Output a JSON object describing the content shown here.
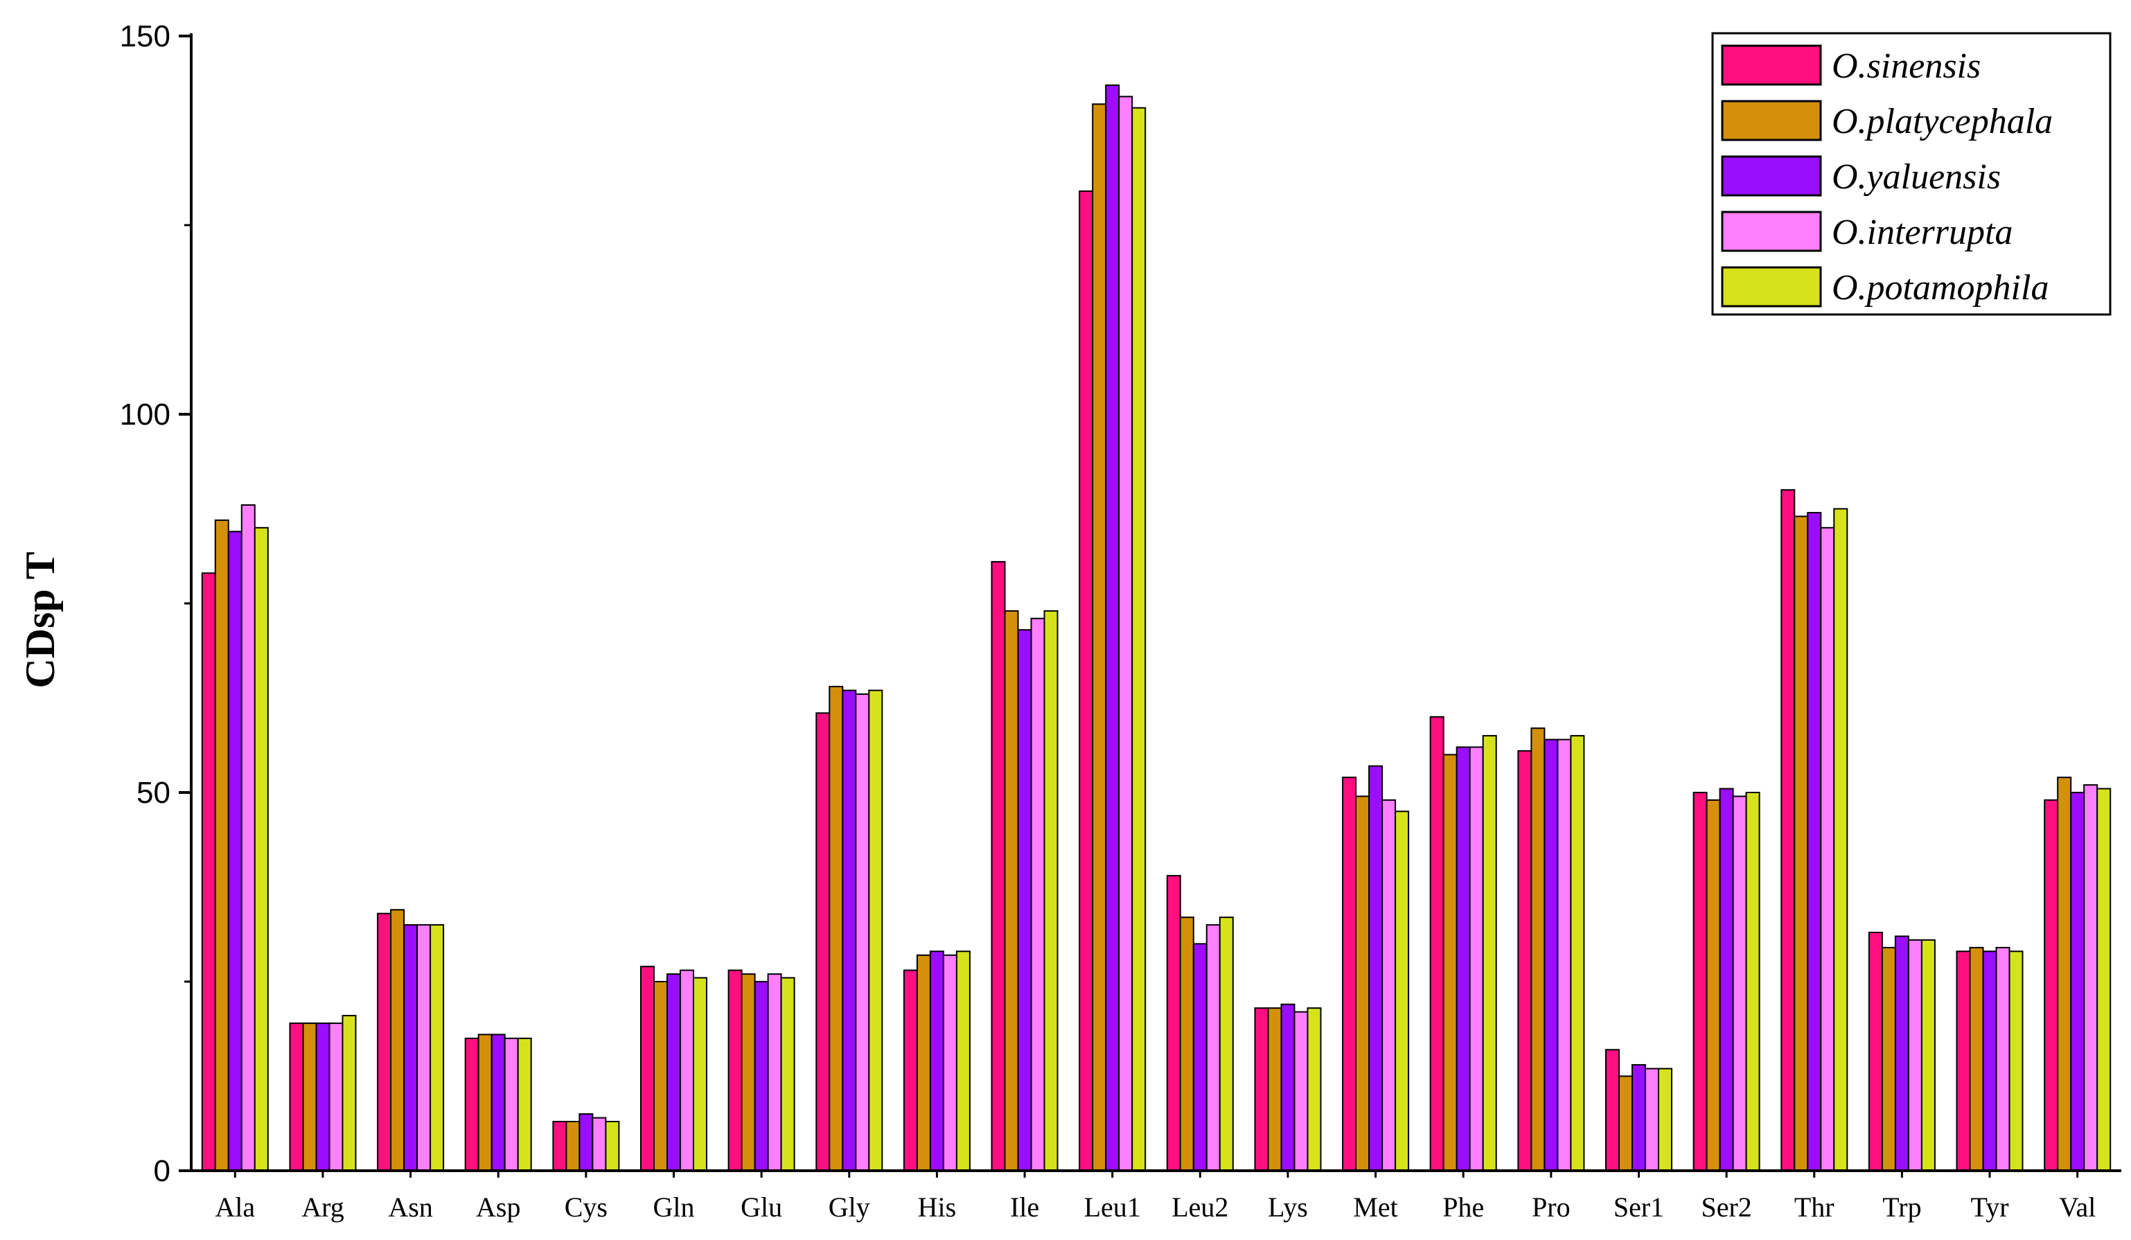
{
  "chart_data": {
    "type": "bar",
    "title": "",
    "xlabel": "",
    "ylabel": "CDsp T",
    "ylim": [
      0,
      150
    ],
    "yticks": [
      0,
      50,
      100,
      150
    ],
    "grid": false,
    "legend_position": "top-right",
    "categories": [
      "Ala",
      "Arg",
      "Asn",
      "Asp",
      "Cys",
      "Gln",
      "Glu",
      "Gly",
      "His",
      "Ile",
      "Leu1",
      "Leu2",
      "Lys",
      "Met",
      "Phe",
      "Pro",
      "Ser1",
      "Ser2",
      "Thr",
      "Trp",
      "Tyr",
      "Val"
    ],
    "series": [
      {
        "name": "O.sinensis",
        "color": "#ff0f7f",
        "values": [
          79,
          19.5,
          34,
          17.5,
          6.5,
          27,
          26.5,
          60.5,
          26.5,
          80.5,
          129.5,
          39,
          21.5,
          52,
          60,
          55.5,
          16,
          50,
          90,
          31.5,
          29,
          49
        ]
      },
      {
        "name": "O.platycephala",
        "color": "#d4900a",
        "values": [
          86,
          19.5,
          34.5,
          18,
          6.5,
          25,
          26,
          64,
          28.5,
          74,
          141,
          33.5,
          21.5,
          49.5,
          55,
          58.5,
          12.5,
          49,
          86.5,
          29.5,
          29.5,
          52
        ]
      },
      {
        "name": "O.yaluensis",
        "color": "#9b0dfd",
        "values": [
          84.5,
          19.5,
          32.5,
          18,
          7.5,
          26,
          25,
          63.5,
          29,
          71.5,
          143.5,
          30,
          22,
          53.5,
          56,
          57,
          14,
          50.5,
          87,
          31,
          29,
          50
        ]
      },
      {
        "name": "O.interrupta",
        "color": "#ff80ff",
        "values": [
          88,
          19.5,
          32.5,
          17.5,
          7,
          26.5,
          26,
          63,
          28.5,
          73,
          142,
          32.5,
          21,
          49,
          56,
          57,
          13.5,
          49.5,
          85,
          30.5,
          29.5,
          51
        ]
      },
      {
        "name": "O.potamophila",
        "color": "#d6e31b",
        "values": [
          85,
          20.5,
          32.5,
          17.5,
          6.5,
          25.5,
          25.5,
          63.5,
          29,
          74,
          140.5,
          33.5,
          21.5,
          47.5,
          57.5,
          57.5,
          13.5,
          50,
          87.5,
          30.5,
          29,
          50.5
        ]
      }
    ]
  }
}
